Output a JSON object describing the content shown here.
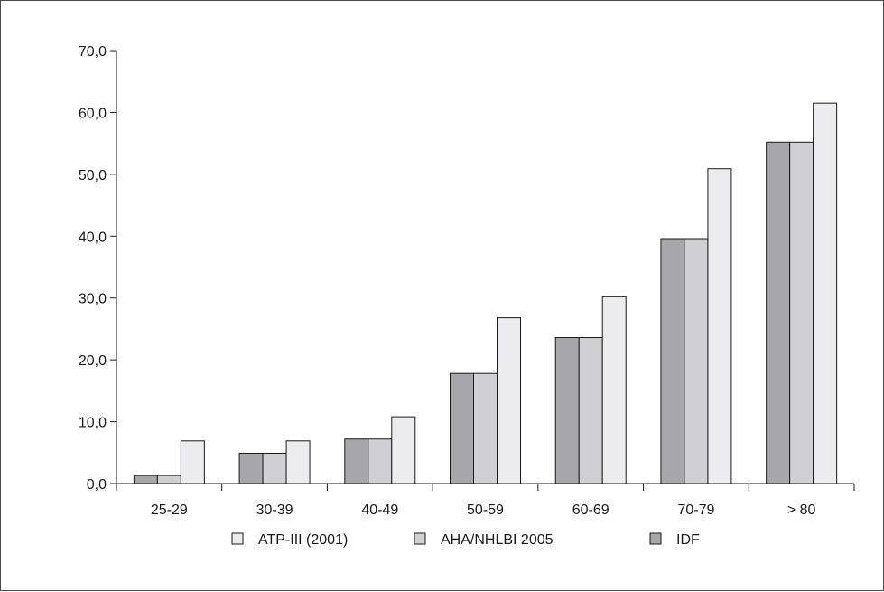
{
  "chart_data": {
    "type": "bar",
    "categories": [
      "25-29",
      "30-39",
      "40-49",
      "50-59",
      "60-69",
      "70-79",
      "> 80"
    ],
    "ylim": [
      0,
      70
    ],
    "yticks": [
      "0,0",
      "10,0",
      "20,0",
      "30,0",
      "40,0",
      "50,0",
      "60,0",
      "70,0"
    ],
    "grid": false,
    "legend_position": "bottom",
    "series": [
      {
        "name": "IDF",
        "color": "#a6a6ab",
        "values": [
          1.3,
          4.9,
          7.2,
          17.8,
          23.6,
          39.6,
          55.2
        ]
      },
      {
        "name": "AHA/NHLBI 2005",
        "color": "#d0d0d4",
        "values": [
          1.3,
          4.9,
          7.2,
          17.8,
          23.6,
          39.6,
          55.2
        ]
      },
      {
        "name": "ATP-III (2001)",
        "color": "#ececee",
        "values": [
          6.9,
          6.9,
          10.8,
          26.8,
          30.2,
          50.9,
          61.5
        ]
      }
    ],
    "legend_order": [
      "ATP-III (2001)",
      "AHA/NHLBI 2005",
      "IDF"
    ]
  }
}
